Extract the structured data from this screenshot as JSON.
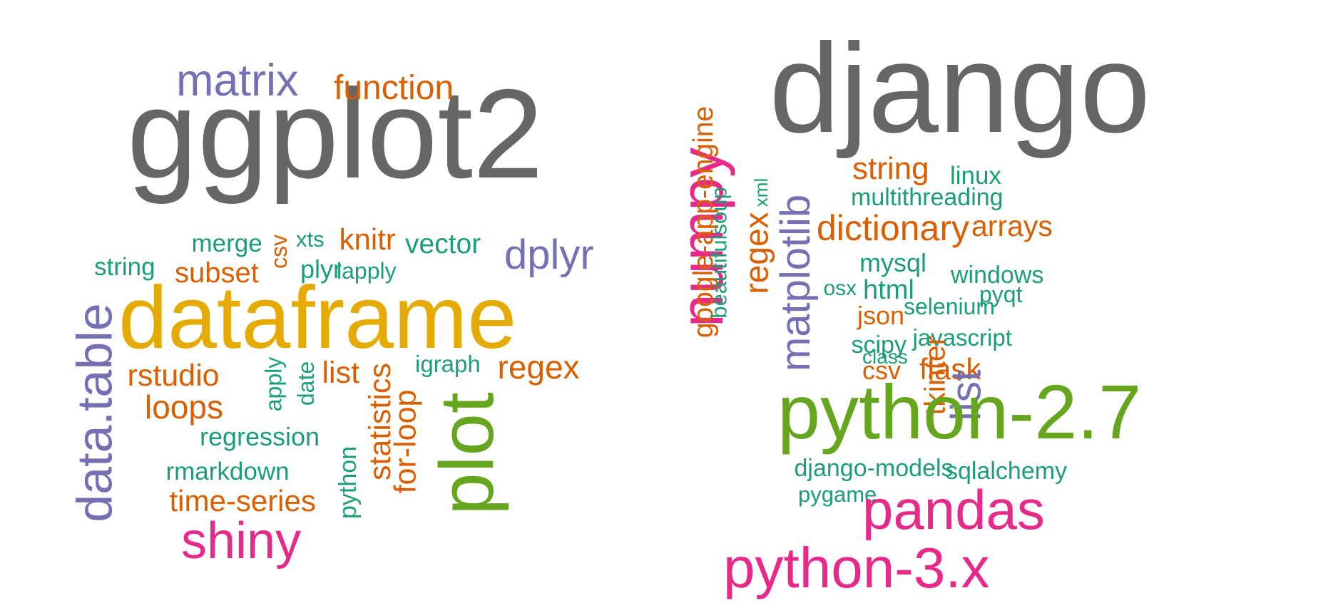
{
  "palette": {
    "gray": "#666666",
    "orange": "#d95f02",
    "purple": "#7570b3",
    "teal": "#1b9e77",
    "yellow": "#e6ab02",
    "green": "#66a61e",
    "pink": "#e7298a"
  },
  "clouds": [
    {
      "id": "left",
      "words": [
        {
          "text": "ggplot2",
          "color": "gray",
          "rotated": false
        },
        {
          "text": "matrix",
          "color": "purple",
          "rotated": false
        },
        {
          "text": "function",
          "color": "orange",
          "rotated": false
        },
        {
          "text": "merge",
          "color": "teal",
          "rotated": false
        },
        {
          "text": "csv",
          "color": "orange",
          "rotated": true
        },
        {
          "text": "xts",
          "color": "teal",
          "rotated": false
        },
        {
          "text": "knitr",
          "color": "orange",
          "rotated": false
        },
        {
          "text": "vector",
          "color": "teal",
          "rotated": false
        },
        {
          "text": "dplyr",
          "color": "purple",
          "rotated": false
        },
        {
          "text": "string",
          "color": "teal",
          "rotated": false
        },
        {
          "text": "subset",
          "color": "orange",
          "rotated": false
        },
        {
          "text": "plyr",
          "color": "teal",
          "rotated": false
        },
        {
          "text": "lapply",
          "color": "teal",
          "rotated": false
        },
        {
          "text": "dataframe",
          "color": "yellow",
          "rotated": false
        },
        {
          "text": "data.table",
          "color": "purple",
          "rotated": true
        },
        {
          "text": "rstudio",
          "color": "orange",
          "rotated": false
        },
        {
          "text": "apply",
          "color": "teal",
          "rotated": true
        },
        {
          "text": "date",
          "color": "teal",
          "rotated": true
        },
        {
          "text": "list",
          "color": "orange",
          "rotated": false
        },
        {
          "text": "statistics",
          "color": "orange",
          "rotated": true
        },
        {
          "text": "igraph",
          "color": "teal",
          "rotated": false
        },
        {
          "text": "regex",
          "color": "orange",
          "rotated": false
        },
        {
          "text": "loops",
          "color": "orange",
          "rotated": false
        },
        {
          "text": "for-loop",
          "color": "orange",
          "rotated": true
        },
        {
          "text": "plot",
          "color": "green",
          "rotated": true
        },
        {
          "text": "regression",
          "color": "teal",
          "rotated": false
        },
        {
          "text": "rmarkdown",
          "color": "teal",
          "rotated": false
        },
        {
          "text": "python",
          "color": "teal",
          "rotated": true
        },
        {
          "text": "time-series",
          "color": "orange",
          "rotated": false
        },
        {
          "text": "shiny",
          "color": "pink",
          "rotated": false
        }
      ]
    },
    {
      "id": "right",
      "words": [
        {
          "text": "django",
          "color": "gray",
          "rotated": false
        },
        {
          "text": "numpy",
          "color": "pink",
          "rotated": true
        },
        {
          "text": "google-app-engine",
          "color": "orange",
          "rotated": true
        },
        {
          "text": "beautifulsoup",
          "color": "teal",
          "rotated": true
        },
        {
          "text": "regex",
          "color": "orange",
          "rotated": true
        },
        {
          "text": "xml",
          "color": "teal",
          "rotated": true
        },
        {
          "text": "matplotlib",
          "color": "purple",
          "rotated": true
        },
        {
          "text": "string",
          "color": "orange",
          "rotated": false
        },
        {
          "text": "linux",
          "color": "teal",
          "rotated": false
        },
        {
          "text": "multithreading",
          "color": "teal",
          "rotated": false
        },
        {
          "text": "dictionary",
          "color": "orange",
          "rotated": false
        },
        {
          "text": "arrays",
          "color": "orange",
          "rotated": false
        },
        {
          "text": "mysql",
          "color": "teal",
          "rotated": false
        },
        {
          "text": "windows",
          "color": "teal",
          "rotated": false
        },
        {
          "text": "osx",
          "color": "teal",
          "rotated": false
        },
        {
          "text": "html",
          "color": "teal",
          "rotated": false
        },
        {
          "text": "selenium",
          "color": "teal",
          "rotated": false
        },
        {
          "text": "pyqt",
          "color": "teal",
          "rotated": false
        },
        {
          "text": "json",
          "color": "orange",
          "rotated": false
        },
        {
          "text": "class",
          "color": "teal",
          "rotated": false
        },
        {
          "text": "scipy",
          "color": "teal",
          "rotated": false
        },
        {
          "text": "javascript",
          "color": "teal",
          "rotated": false
        },
        {
          "text": "tkinter",
          "color": "orange",
          "rotated": true
        },
        {
          "text": "csv",
          "color": "orange",
          "rotated": false
        },
        {
          "text": "flask",
          "color": "orange",
          "rotated": false
        },
        {
          "text": "list",
          "color": "purple",
          "rotated": true
        },
        {
          "text": "python-2.7",
          "color": "green",
          "rotated": false
        },
        {
          "text": "django-models",
          "color": "teal",
          "rotated": false
        },
        {
          "text": "sqlalchemy",
          "color": "teal",
          "rotated": false
        },
        {
          "text": "pygame",
          "color": "teal",
          "rotated": false
        },
        {
          "text": "pandas",
          "color": "pink",
          "rotated": false
        },
        {
          "text": "python-3.x",
          "color": "pink",
          "rotated": false
        }
      ]
    }
  ]
}
